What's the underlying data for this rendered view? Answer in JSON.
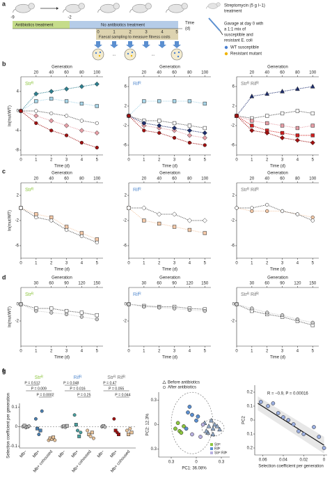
{
  "panel_a": {
    "panel": "a",
    "time_ticks": [
      "-9",
      "-2",
      "0",
      "1",
      "2",
      "3",
      "4",
      "5"
    ],
    "time_label": "Time",
    "time_unit": "(d)",
    "phase_1": "Antibiotics treatment",
    "phase_2": "No antibiotics treatment",
    "sampling": "Faecal sampling to measure fitness costs",
    "dots": "...",
    "treatment_lines": [
      "Streptomycin (5 g l−1)",
      "treatment"
    ],
    "gavage_lines": [
      "Gavage at day 0 with",
      "a 1:1 mix of",
      "susceptible and",
      "resistant E. coli"
    ],
    "legend": [
      {
        "name": "WT susceptible",
        "color": "#4a7fd0"
      },
      {
        "name": "Resistant mutant",
        "color": "#f0b400"
      }
    ]
  },
  "chart_data": [
    {
      "type": "line",
      "panel": "b",
      "annotation": "Strᴿ",
      "annotation_color": "#8dc63f",
      "x": [
        0,
        1,
        2,
        3,
        4,
        5
      ],
      "xlim": [
        0,
        5.4
      ],
      "xticks": [
        0,
        1,
        2,
        3,
        4,
        5
      ],
      "xlabel": "Time (d)",
      "x2label": "Generation",
      "x2lim": [
        0,
        108
      ],
      "x2ticks": [
        20,
        40,
        60,
        80,
        100
      ],
      "ylabel": "ln(mut/WT)",
      "ylim": [
        -9,
        7
      ],
      "yticks": [
        -8,
        -4,
        0,
        4
      ],
      "series": [
        {
          "color": "#2f8090",
          "marker": "diamond",
          "values": [
            0,
            3.5,
            4,
            4.5,
            5,
            5.5
          ]
        },
        {
          "color": "#a8d5e8",
          "marker": "square",
          "values": [
            0,
            2,
            2.5,
            2,
            1.5,
            1
          ]
        },
        {
          "color": "#ffffff",
          "marker": "circle",
          "values": [
            0,
            0,
            -0.5,
            -1,
            -2,
            -2.5
          ]
        },
        {
          "color": "#e8a0a8",
          "marker": "diamond",
          "values": [
            0,
            -1,
            -2,
            -3,
            -4,
            -4.5
          ]
        },
        {
          "color": "#a01010",
          "marker": "circle",
          "values": [
            0,
            -2.5,
            -4,
            -5,
            -6.5,
            -7.5
          ]
        }
      ]
    },
    {
      "type": "line",
      "annotation": "Rifᴿ",
      "annotation_color": "#5b8fd0",
      "x": [
        0,
        1,
        2,
        3,
        4,
        5
      ],
      "xlim": [
        0,
        5.4
      ],
      "xticks": [
        0,
        1,
        2,
        3,
        4,
        5
      ],
      "xlabel": "Time (d)",
      "x2label": "Generation",
      "x2lim": [
        0,
        108
      ],
      "x2ticks": [
        20,
        40,
        60,
        80,
        100
      ],
      "ylim": [
        -8,
        8
      ],
      "yticks": [
        -6,
        -2,
        2,
        6
      ],
      "series": [
        {
          "color": "#a8d5e8",
          "marker": "square",
          "values": [
            0,
            3,
            3,
            3,
            3,
            2.5
          ]
        },
        {
          "color": "#ffffff",
          "marker": "square",
          "values": [
            0,
            -1,
            -1,
            -1.5,
            -2,
            -2.5
          ]
        },
        {
          "color": "#e8a0a8",
          "marker": "diamond",
          "values": [
            0,
            -2,
            -2.5,
            -3,
            -4,
            -4.5
          ]
        },
        {
          "color": "#1f2f6f",
          "marker": "diamond",
          "values": [
            0,
            -1.5,
            -2,
            -2.5,
            -3,
            -3.5
          ]
        },
        {
          "color": "#a01010",
          "marker": "circle",
          "values": [
            0,
            -3,
            -3.5,
            -4.5,
            -5.5,
            -6
          ]
        }
      ]
    },
    {
      "type": "line",
      "annotation": "Strᴿ Rifᴿ",
      "annotation_color": "#777777",
      "x": [
        0,
        1,
        2,
        3,
        4,
        5
      ],
      "xlim": [
        0,
        5.4
      ],
      "xticks": [
        0,
        1,
        2,
        3,
        4,
        5
      ],
      "xlabel": "Time (d)",
      "x2label": "Generation",
      "x2lim": [
        0,
        108
      ],
      "x2ticks": [
        20,
        40,
        60,
        80,
        100
      ],
      "ylim": [
        -8,
        8
      ],
      "yticks": [
        -6,
        -2,
        2,
        6
      ],
      "series": [
        {
          "color": "#1f2f6f",
          "marker": "triangle",
          "values": [
            0,
            4,
            4.5,
            5,
            5.5,
            6
          ]
        },
        {
          "color": "#ffffff",
          "marker": "square",
          "values": [
            0,
            -0.5,
            0,
            0.5,
            1,
            0.5
          ]
        },
        {
          "color": "#e8a0a8",
          "marker": "square",
          "values": [
            0,
            -1,
            -1.5,
            -2,
            -2.5,
            -2
          ]
        },
        {
          "color": "#d02020",
          "marker": "square",
          "values": [
            0,
            -2,
            -3,
            -3.5,
            -4,
            -4
          ]
        },
        {
          "color": "#a01010",
          "marker": "diamond",
          "values": [
            0,
            -3,
            -3.5,
            -4.5,
            -5,
            -5.5
          ]
        }
      ]
    },
    {
      "type": "line",
      "panel": "c",
      "annotation": "Strᴿ",
      "annotation_color": "#8dc63f",
      "x": [
        0,
        1,
        2,
        3,
        4,
        5
      ],
      "xlim": [
        0,
        5.4
      ],
      "xticks": [
        0,
        1,
        2,
        3,
        4,
        5
      ],
      "xlabel": "Time (d)",
      "x2label": "Generation",
      "x2lim": [
        0,
        108
      ],
      "x2ticks": [
        20,
        40,
        60,
        80,
        100
      ],
      "ylabel": "ln(mut/WT)",
      "ylim": [
        -8,
        4
      ],
      "yticks": [
        -6,
        -2,
        2
      ],
      "series": [
        {
          "color": "#f4c9a8",
          "marker": "square",
          "values": [
            0,
            -1,
            -1.5,
            -3,
            -4,
            -5
          ]
        },
        {
          "color": "#ffffff",
          "marker": "circle",
          "values": [
            0,
            -1.5,
            -2,
            -3.5,
            -4.5,
            -5.5
          ]
        }
      ]
    },
    {
      "type": "line",
      "annotation": "Rifᴿ",
      "annotation_color": "#5b8fd0",
      "x": [
        0,
        1,
        2,
        3,
        4,
        5
      ],
      "xlim": [
        0,
        5.4
      ],
      "xticks": [
        0,
        1,
        2,
        3,
        4,
        5
      ],
      "xlabel": "Time (d)",
      "x2label": "Generation",
      "x2lim": [
        0,
        108
      ],
      "x2ticks": [
        20,
        40,
        60,
        80,
        100
      ],
      "ylim": [
        -8,
        4
      ],
      "yticks": [
        -6,
        -2,
        2
      ],
      "series": [
        {
          "color": "#f4c9a8",
          "marker": "square",
          "values": [
            0,
            -2,
            -2.5,
            -3,
            -3.5,
            -4
          ]
        },
        {
          "color": "#ffffff",
          "marker": "diamond",
          "values": [
            0,
            0,
            -1,
            -1,
            -2,
            -2
          ]
        }
      ]
    },
    {
      "type": "line",
      "annotation": "Strᴿ Rifᴿ",
      "annotation_color": "#777777",
      "x": [
        0,
        1,
        2,
        3,
        4,
        5
      ],
      "xlim": [
        0,
        5.4
      ],
      "xticks": [
        0,
        1,
        2,
        3,
        4,
        5
      ],
      "xlabel": "Time (d)",
      "x2label": "Generation",
      "x2lim": [
        0,
        108
      ],
      "x2ticks": [
        20,
        40,
        60,
        80,
        100
      ],
      "ylim": [
        -8,
        4
      ],
      "yticks": [
        -6,
        -2,
        2
      ],
      "series": [
        {
          "color": "#f4c9a8",
          "marker": "circle",
          "values": [
            0,
            -0.5,
            -0.5,
            -0.5,
            -1,
            -1.5
          ]
        },
        {
          "color": "#ffffff",
          "marker": "circle",
          "values": [
            0,
            0,
            0.5,
            -0.5,
            -1,
            -2
          ]
        }
      ]
    },
    {
      "type": "line",
      "panel": "d",
      "annotation": "Strᴿ",
      "annotation_color": "#8dc63f",
      "x": [
        0,
        1,
        2,
        3,
        4,
        5
      ],
      "xlim": [
        0,
        5.4
      ],
      "xticks": [
        0,
        1,
        2,
        3,
        4,
        5
      ],
      "xlabel": "Time (d)",
      "x2label": "Generation",
      "x2lim": [
        0,
        162
      ],
      "x2ticks": [
        30,
        60,
        90,
        120,
        150
      ],
      "ylabel": "ln(mut/WT)",
      "ylim": [
        -5,
        2
      ],
      "yticks": [
        -2,
        0
      ],
      "series": [
        {
          "color": "#ffffff",
          "marker": "square",
          "values": [
            0,
            -0.5,
            -0.5,
            -0.8,
            -1,
            -1.3
          ]
        },
        {
          "color": "#cccccc",
          "marker": "circle",
          "values": [
            0,
            -0.8,
            -1,
            -1.2,
            -1.5,
            -1.8
          ]
        }
      ]
    },
    {
      "type": "line",
      "annotation": "Rifᴿ",
      "annotation_color": "#5b8fd0",
      "x": [
        0,
        1,
        2,
        3,
        4,
        5
      ],
      "xlim": [
        0,
        5.4
      ],
      "xticks": [
        0,
        1,
        2,
        3,
        4,
        5
      ],
      "xlabel": "Time (d)",
      "x2label": "Generation",
      "x2lim": [
        0,
        162
      ],
      "x2ticks": [
        30,
        60,
        90,
        120,
        150
      ],
      "ylim": [
        -5,
        2
      ],
      "yticks": [
        -2,
        0
      ],
      "series": [
        {
          "color": "#ffffff",
          "marker": "square",
          "values": [
            0,
            -0.2,
            -0.3,
            -0.3,
            -0.5,
            -0.6
          ]
        },
        {
          "color": "#cccccc",
          "marker": "circle",
          "values": [
            0,
            -0.3,
            -0.4,
            -0.5,
            -0.7,
            -0.8
          ]
        }
      ]
    },
    {
      "type": "line",
      "annotation": "Strᴿ Rifᴿ",
      "annotation_color": "#777777",
      "x": [
        0,
        1,
        2,
        3,
        4,
        5
      ],
      "xlim": [
        0,
        5.4
      ],
      "xticks": [
        0,
        1,
        2,
        3,
        4,
        5
      ],
      "xlabel": "Time (d)",
      "x2label": "Generation",
      "x2lim": [
        0,
        162
      ],
      "x2ticks": [
        30,
        60,
        90,
        120,
        150
      ],
      "ylim": [
        -5,
        2
      ],
      "yticks": [
        -2,
        0
      ],
      "series": [
        {
          "color": "#ffffff",
          "marker": "square",
          "values": [
            0,
            -0.8,
            -1.2,
            -1.5,
            -2,
            -2.5
          ]
        },
        {
          "color": "#cccccc",
          "marker": "circle",
          "values": [
            0,
            -0.5,
            -1,
            -1.3,
            -1.8,
            -2.2
          ]
        }
      ]
    },
    {
      "type": "strip",
      "panel": "e",
      "ylabel": "Selection coefficient per generation",
      "ylim": [
        -0.11,
        0.12
      ],
      "yticks": [
        -0.1,
        0,
        0.1
      ],
      "categories": [
        "Mb−",
        "Mb+",
        "Mb+ cohoused",
        "Mb−",
        "Mb+",
        "Mb+ cohoused",
        "Mb−",
        "Mb+",
        "Mb+ cohoused"
      ],
      "colors": [
        "#bbbbbb",
        "#4a7fb0",
        "#e8c39a",
        "#bbbbbb",
        "#4a9f9f",
        "#e8c39a",
        "#bbbbbb",
        "#a01010",
        "#e8c39a"
      ],
      "values": [
        [
          0,
          0.005,
          -0.005,
          0,
          0.003
        ],
        [
          0.04,
          -0.01,
          -0.04,
          -0.02,
          0.08
        ],
        [
          -0.07,
          -0.06,
          -0.065,
          -0.055,
          -0.07
        ],
        [
          0,
          0.002,
          -0.003,
          0.004
        ],
        [
          0.06,
          0.01,
          -0.02,
          -0.05,
          -0.03
        ],
        [
          -0.02,
          -0.04,
          -0.05,
          -0.03,
          -0.06
        ],
        [
          0,
          0.003,
          -0.002
        ],
        [
          0.04,
          -0.02,
          -0.03,
          -0.04
        ],
        [
          -0.02,
          -0.04,
          -0.01,
          -0.03
        ]
      ],
      "groups": [
        {
          "name": "Strᴿ",
          "color": "#8dc63f",
          "p_values": [
            "P = 0.512",
            "P = 0.009",
            "P = 0.0002"
          ]
        },
        {
          "name": "Rifᴿ",
          "color": "#5b8fd0",
          "p_values": [
            "P = 0.048",
            "P = 0.016",
            "P = 0.25"
          ]
        },
        {
          "name": "Strᴿ Rifᴿ",
          "color": "#777777",
          "p_values": [
            "P = 0.47",
            "P = 0.055",
            "P = 0.044"
          ]
        }
      ]
    },
    {
      "type": "scatter",
      "panel": "f",
      "xlabel": "PC1: 36.08%",
      "ylabel": "PC2: 12.3%",
      "xlim": [
        -0.45,
        0.4
      ],
      "ylim": [
        -0.4,
        0.4
      ],
      "xticks": [
        {
          "value": -0.3,
          "label": "0.3"
        },
        0,
        0.3
      ],
      "yticks": [
        {
          "value": -0.3,
          "label": "0.3"
        },
        0,
        0.3
      ],
      "marker_legend": [
        "Before antibiotics",
        "After antibiotics"
      ],
      "series": [
        {
          "name": "Strᴿ",
          "color": "#8dc63f",
          "x": [
            -0.25,
            -0.2,
            -0.15,
            -0.22,
            -0.18
          ],
          "values": [
            -0.05,
            -0.08,
            -0.02,
            0.02,
            -0.1
          ],
          "before_x": [
            0.14,
            0.2
          ],
          "before_values": [
            -0.1,
            -0.12
          ]
        },
        {
          "name": "Rifᴿ",
          "color": "#5b8fd0",
          "x": [
            -0.1,
            -0.05,
            0,
            -0.08,
            0.02,
            -0.12
          ],
          "values": [
            0.15,
            0.12,
            0.05,
            0.22,
            0.1,
            -0.05
          ],
          "before_x": [
            0.1,
            0.15,
            0.18,
            0.2,
            0.12,
            0.22
          ],
          "before_values": [
            0.02,
            -0.02,
            0.05,
            -0.05,
            -0.08,
            0
          ]
        },
        {
          "name": "Strᴿ Rifᴿ",
          "color": "#b8b0e0",
          "x": [
            -0.05,
            0.05,
            0.08
          ],
          "values": [
            -0.12,
            -0.15,
            0
          ],
          "before_x": [
            0.25,
            0.28
          ],
          "before_values": [
            -0.02,
            -0.06
          ]
        }
      ]
    },
    {
      "type": "scatter",
      "panel": "g",
      "xlabel": "Selection coefficient per generation",
      "ylabel": "PC2",
      "annotation": "R = −0.9, P = 0.00016",
      "xlim": [
        -0.068,
        0.003
      ],
      "ylim": [
        -0.25,
        0.25
      ],
      "xticks": [
        {
          "value": -0.06,
          "label": "0.06"
        },
        {
          "value": -0.04,
          "label": "0.04"
        },
        {
          "value": -0.02,
          "label": "0.02"
        },
        0
      ],
      "yticks": [
        {
          "value": -0.2,
          "label": "0.2"
        },
        {
          "value": -0.1,
          "label": "0.1"
        },
        0,
        0.1,
        0.2
      ],
      "series": [
        {
          "color": "#9aaee0",
          "x": [
            -0.062,
            -0.055,
            -0.05,
            -0.045,
            -0.04,
            -0.035,
            -0.03,
            -0.025,
            -0.02,
            -0.01,
            0,
            -0.005
          ],
          "values": [
            0.13,
            0.1,
            0.12,
            0.05,
            0.02,
            0,
            -0.03,
            -0.08,
            -0.1,
            -0.05,
            -0.2,
            -0.12
          ]
        }
      ],
      "trend": {
        "color": "#111111",
        "x": [
          -0.065,
          0
        ],
        "values": [
          0.12,
          -0.18
        ]
      }
    }
  ]
}
